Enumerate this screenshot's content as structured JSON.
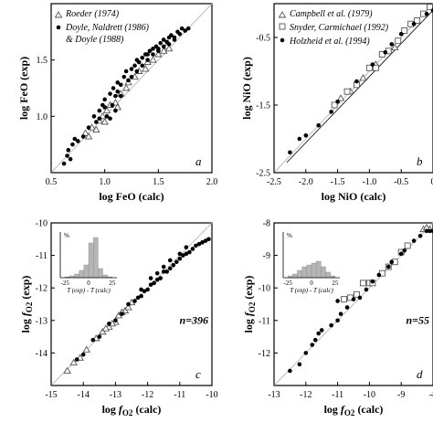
{
  "chart_data": [
    {
      "panel": "a",
      "type": "scatter",
      "xlabel": "log FeO (calc)",
      "ylabel": "log FeO (exp)",
      "xlim": [
        0.5,
        2.0
      ],
      "ylim": [
        0.5,
        2.0
      ],
      "xticks": [
        "0.5",
        "1.0",
        "1.5",
        "2.0"
      ],
      "yticks": [
        "1.0",
        "1.5"
      ],
      "panel_label": "a",
      "legend": [
        "Roeder (1974)",
        "Doyle, Naldrett (1986)",
        "& Doyle (1988)"
      ],
      "series": [
        {
          "name": "Roeder (1974)",
          "marker": "triangle",
          "points": [
            [
              0.82,
              0.85
            ],
            [
              0.88,
              0.9
            ],
            [
              0.92,
              0.88
            ],
            [
              0.95,
              0.96
            ],
            [
              0.98,
              1.0
            ],
            [
              1.02,
              1.05
            ],
            [
              1.05,
              1.1
            ],
            [
              1.1,
              1.12
            ],
            [
              1.15,
              1.2
            ],
            [
              1.2,
              1.25
            ],
            [
              1.22,
              1.3
            ],
            [
              1.28,
              1.35
            ],
            [
              1.32,
              1.4
            ],
            [
              1.38,
              1.42
            ],
            [
              1.4,
              1.48
            ],
            [
              1.45,
              1.5
            ],
            [
              1.5,
              1.55
            ],
            [
              1.55,
              1.58
            ],
            [
              1.58,
              1.62
            ],
            [
              1.6,
              1.6
            ],
            [
              0.85,
              0.82
            ],
            [
              1.0,
              0.95
            ],
            [
              1.12,
              1.08
            ]
          ]
        },
        {
          "name": "Doyle, Naldrett (1986) & Doyle (1988)",
          "marker": "dot",
          "points": [
            [
              0.62,
              0.58
            ],
            [
              0.65,
              0.65
            ],
            [
              0.66,
              0.7
            ],
            [
              0.68,
              0.62
            ],
            [
              0.7,
              0.75
            ],
            [
              0.72,
              0.8
            ],
            [
              0.75,
              0.78
            ],
            [
              0.8,
              0.82
            ],
            [
              0.85,
              0.9
            ],
            [
              0.9,
              1.0
            ],
            [
              0.92,
              0.95
            ],
            [
              0.95,
              1.05
            ],
            [
              0.98,
              1.1
            ],
            [
              1.0,
              1.15
            ],
            [
              1.02,
              1.0
            ],
            [
              1.05,
              1.2
            ],
            [
              1.07,
              1.1
            ],
            [
              1.08,
              1.25
            ],
            [
              1.1,
              1.18
            ],
            [
              1.12,
              1.3
            ],
            [
              1.15,
              1.28
            ],
            [
              1.18,
              1.35
            ],
            [
              1.2,
              1.4
            ],
            [
              1.22,
              1.32
            ],
            [
              1.25,
              1.42
            ],
            [
              1.28,
              1.45
            ],
            [
              1.3,
              1.5
            ],
            [
              1.32,
              1.48
            ],
            [
              1.35,
              1.52
            ],
            [
              1.38,
              1.55
            ],
            [
              1.4,
              1.5
            ],
            [
              1.42,
              1.58
            ],
            [
              1.45,
              1.6
            ],
            [
              1.48,
              1.62
            ],
            [
              1.5,
              1.6
            ],
            [
              1.52,
              1.65
            ],
            [
              1.55,
              1.68
            ],
            [
              1.58,
              1.66
            ],
            [
              1.6,
              1.7
            ],
            [
              1.62,
              1.72
            ],
            [
              1.65,
              1.7
            ],
            [
              1.68,
              1.75
            ],
            [
              1.7,
              1.73
            ],
            [
              1.72,
              1.78
            ],
            [
              1.75,
              1.76
            ],
            [
              1.78,
              1.78
            ],
            [
              1.1,
              1.05
            ],
            [
              1.05,
              0.98
            ],
            [
              1.0,
              1.08
            ],
            [
              1.15,
              1.18
            ],
            [
              1.25,
              1.35
            ],
            [
              1.35,
              1.45
            ],
            [
              1.45,
              1.55
            ],
            [
              1.55,
              1.62
            ],
            [
              0.95,
              0.98
            ],
            [
              1.12,
              1.22
            ],
            [
              1.3,
              1.4
            ],
            [
              1.4,
              1.55
            ],
            [
              1.5,
              1.58
            ],
            [
              1.6,
              1.64
            ],
            [
              1.65,
              1.68
            ]
          ]
        }
      ]
    },
    {
      "panel": "b",
      "type": "scatter",
      "xlabel": "log NiO (calc)",
      "ylabel": "log NiO (exp)",
      "xlim": [
        -2.5,
        0.0
      ],
      "ylim": [
        -2.5,
        0.0
      ],
      "xticks": [
        "-2.5",
        "-2.0",
        "-1.5",
        "-1.0",
        "-0.5",
        "0"
      ],
      "yticks": [
        "-2.5",
        "-1.5",
        "-0.5"
      ],
      "panel_label": "b",
      "legend": [
        "Campbell et al. (1979)",
        "Snyder, Carmichael (1992)",
        "Holzheid et al. (1994)"
      ],
      "series": [
        {
          "name": "Campbell et al. (1979)",
          "marker": "triangle",
          "points": [
            [
              -1.45,
              -1.4
            ],
            [
              -1.3,
              -1.3
            ],
            [
              -1.1,
              -1.1
            ],
            [
              -0.9,
              -0.9
            ],
            [
              -0.6,
              -0.65
            ]
          ]
        },
        {
          "name": "Snyder, Carmichael (1992)",
          "marker": "square",
          "points": [
            [
              -1.55,
              -1.5
            ],
            [
              -1.35,
              -1.3
            ],
            [
              -1.2,
              -1.2
            ],
            [
              -1.0,
              -0.95
            ],
            [
              -0.9,
              -0.95
            ],
            [
              -0.8,
              -0.75
            ],
            [
              -0.7,
              -0.7
            ],
            [
              -0.55,
              -0.55
            ],
            [
              -0.45,
              -0.4
            ],
            [
              -0.35,
              -0.3
            ],
            [
              -0.25,
              -0.25
            ],
            [
              -0.15,
              -0.15
            ],
            [
              -0.05,
              -0.05
            ]
          ]
        },
        {
          "name": "Holzheid et al. (1994)",
          "marker": "dot",
          "points": [
            [
              -2.25,
              -2.2
            ],
            [
              -2.1,
              -2.0
            ],
            [
              -2.0,
              -1.95
            ],
            [
              -1.8,
              -1.8
            ],
            [
              -1.6,
              -1.6
            ],
            [
              -1.5,
              -1.45
            ],
            [
              -1.2,
              -1.15
            ],
            [
              -0.95,
              -0.9
            ],
            [
              -0.75,
              -0.72
            ],
            [
              -0.65,
              -0.6
            ],
            [
              -0.5,
              -0.45
            ],
            [
              -0.3,
              -0.3
            ],
            [
              -0.1,
              -0.15
            ],
            [
              0.0,
              -0.1
            ]
          ]
        }
      ]
    },
    {
      "panel": "c",
      "type": "scatter",
      "xlabel": "log fO2 (calc)",
      "ylabel": "log fO2 (exp)",
      "xlim": [
        -15,
        -10
      ],
      "ylim": [
        -15,
        -10
      ],
      "xticks": [
        "-15",
        "-14",
        "-13",
        "-12",
        "-11",
        "-10"
      ],
      "yticks": [
        "-14",
        "-13",
        "-12",
        "-11",
        "-10"
      ],
      "panel_label": "c",
      "n_label": "n=396",
      "inset": {
        "xlabel": "T (exp) - T (calc)",
        "ylabel": "%",
        "xticks": [
          "-25",
          "0",
          "25"
        ],
        "bins": [
          -30,
          -25,
          -20,
          -15,
          -10,
          -5,
          0,
          5,
          10,
          15,
          20,
          25,
          30
        ],
        "values": [
          0,
          1,
          2,
          4,
          8,
          14,
          38,
          44,
          10,
          3,
          1,
          0
        ]
      },
      "series": [
        {
          "name": "triangles",
          "marker": "triangle",
          "points": [
            [
              -14.5,
              -14.55
            ],
            [
              -14.3,
              -14.3
            ],
            [
              -14.1,
              -14.15
            ],
            [
              -13.9,
              -13.9
            ],
            [
              -13.6,
              -13.55
            ],
            [
              -13.4,
              -13.35
            ],
            [
              -13.2,
              -13.2
            ],
            [
              -13.0,
              -13.05
            ],
            [
              -12.9,
              -12.85
            ],
            [
              -12.7,
              -12.7
            ],
            [
              -12.6,
              -12.6
            ],
            [
              -12.5,
              -12.45
            ],
            [
              -13.3,
              -13.25
            ],
            [
              -13.1,
              -13.1
            ],
            [
              -12.8,
              -12.75
            ]
          ]
        },
        {
          "name": "dots",
          "marker": "dot",
          "points": [
            [
              -14.2,
              -14.2
            ],
            [
              -14.0,
              -14.05
            ],
            [
              -13.7,
              -13.6
            ],
            [
              -13.5,
              -13.5
            ],
            [
              -13.2,
              -13.1
            ],
            [
              -13.0,
              -13.0
            ],
            [
              -12.8,
              -12.8
            ],
            [
              -12.6,
              -12.5
            ],
            [
              -12.4,
              -12.4
            ],
            [
              -12.3,
              -12.3
            ],
            [
              -12.2,
              -12.25
            ],
            [
              -12.1,
              -12.1
            ],
            [
              -12.0,
              -12.05
            ],
            [
              -11.9,
              -11.9
            ],
            [
              -11.8,
              -11.85
            ],
            [
              -11.7,
              -11.75
            ],
            [
              -11.6,
              -11.7
            ],
            [
              -11.5,
              -11.5
            ],
            [
              -11.4,
              -11.5
            ],
            [
              -11.3,
              -11.4
            ],
            [
              -11.2,
              -11.3
            ],
            [
              -11.1,
              -11.2
            ],
            [
              -11.0,
              -11.1
            ],
            [
              -10.9,
              -11.0
            ],
            [
              -10.8,
              -10.95
            ],
            [
              -10.7,
              -10.9
            ],
            [
              -10.6,
              -10.8
            ],
            [
              -10.5,
              -10.7
            ],
            [
              -10.4,
              -10.65
            ],
            [
              -10.3,
              -10.6
            ],
            [
              -10.2,
              -10.55
            ],
            [
              -10.1,
              -10.5
            ],
            [
              -12.2,
              -12.05
            ],
            [
              -11.9,
              -11.7
            ],
            [
              -11.7,
              -11.55
            ],
            [
              -11.5,
              -11.35
            ],
            [
              -11.3,
              -11.15
            ],
            [
              -11.0,
              -10.95
            ],
            [
              -10.8,
              -10.75
            ]
          ]
        }
      ]
    },
    {
      "panel": "d",
      "type": "scatter",
      "xlabel": "log fO2 (calc)",
      "ylabel": "log fO2 (exp)",
      "xlim": [
        -13,
        -8
      ],
      "ylim": [
        -13,
        -8
      ],
      "xticks": [
        "-13",
        "-12",
        "-11",
        "-10",
        "-9",
        "-8"
      ],
      "yticks": [
        "-12",
        "-11",
        "-10",
        "-9",
        "-8"
      ],
      "panel_label": "d",
      "n_label": "n=55",
      "inset": {
        "xlabel": "T (exp) - T (calc)",
        "ylabel": "%",
        "xticks": [
          "-25",
          "0",
          "25"
        ],
        "bins": [
          -30,
          -25,
          -20,
          -15,
          -10,
          -5,
          0,
          5,
          10,
          15,
          20,
          25,
          30
        ],
        "values": [
          0,
          2,
          4,
          8,
          12,
          14,
          16,
          18,
          12,
          6,
          2,
          0
        ]
      },
      "series": [
        {
          "name": "triangles",
          "marker": "triangle",
          "points": [
            [
              -8.3,
              -8.2
            ],
            [
              -8.2,
              -8.15
            ],
            [
              -8.1,
              -8.2
            ]
          ]
        },
        {
          "name": "squares",
          "marker": "square",
          "points": [
            [
              -10.8,
              -10.35
            ],
            [
              -10.2,
              -9.85
            ],
            [
              -10.0,
              -9.85
            ],
            [
              -9.9,
              -9.85
            ],
            [
              -9.6,
              -9.55
            ],
            [
              -9.4,
              -9.35
            ],
            [
              -9.2,
              -9.2
            ],
            [
              -9.0,
              -8.9
            ],
            [
              -8.8,
              -8.7
            ],
            [
              -10.6,
              -10.3
            ],
            [
              -10.4,
              -10.2
            ]
          ]
        },
        {
          "name": "dots",
          "marker": "dot",
          "points": [
            [
              -12.5,
              -12.55
            ],
            [
              -12.2,
              -12.35
            ],
            [
              -12.0,
              -12.0
            ],
            [
              -11.8,
              -11.75
            ],
            [
              -11.7,
              -11.6
            ],
            [
              -11.6,
              -11.4
            ],
            [
              -11.5,
              -11.3
            ],
            [
              -11.2,
              -11.15
            ],
            [
              -11.0,
              -11.0
            ],
            [
              -10.9,
              -10.8
            ],
            [
              -10.7,
              -10.6
            ],
            [
              -10.5,
              -10.35
            ],
            [
              -10.3,
              -10.3
            ],
            [
              -10.1,
              -10.05
            ],
            [
              -9.9,
              -9.8
            ],
            [
              -9.7,
              -9.6
            ],
            [
              -9.4,
              -9.35
            ],
            [
              -9.3,
              -9.2
            ],
            [
              -9.0,
              -8.95
            ],
            [
              -8.9,
              -8.85
            ],
            [
              -8.6,
              -8.55
            ],
            [
              -8.4,
              -8.4
            ],
            [
              -8.2,
              -8.25
            ],
            [
              -8.1,
              -8.25
            ],
            [
              -8.0,
              -8.25
            ],
            [
              -7.95,
              -8.25
            ],
            [
              -11.0,
              -10.4
            ]
          ]
        }
      ]
    }
  ]
}
